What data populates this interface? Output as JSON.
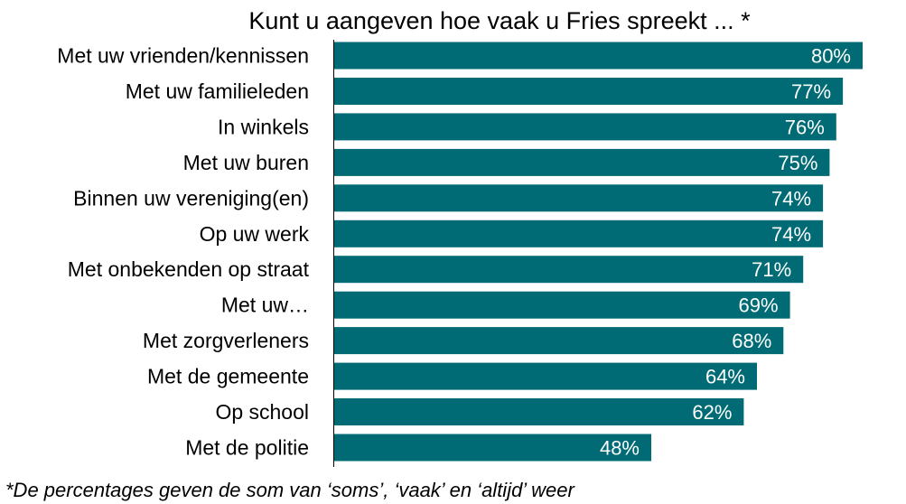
{
  "chart_data": {
    "type": "bar",
    "orientation": "horizontal",
    "title": "Kunt u aangeven hoe vaak u Fries spreekt ... *",
    "categories": [
      "Met uw vrienden/kennissen",
      "Met uw familieleden",
      "In winkels",
      "Met uw buren",
      "Binnen uw vereniging(en)",
      "Op uw werk",
      "Met onbekenden op straat",
      "Met uw…",
      "Met zorgverleners",
      "Met de gemeente",
      "Op school",
      "Met de politie"
    ],
    "values": [
      80,
      77,
      76,
      75,
      74,
      74,
      71,
      69,
      68,
      64,
      62,
      48
    ],
    "value_labels": [
      "80%",
      "77%",
      "76%",
      "75%",
      "74%",
      "74%",
      "71%",
      "69%",
      "68%",
      "64%",
      "62%",
      "48%"
    ],
    "unit": "%",
    "xlim": [
      0,
      80
    ],
    "grid": false,
    "legend": "none",
    "bar_color": "#006b75",
    "value_label_color": "#ffffff",
    "footnote": "*De percentages geven de som van ‘soms’, ‘vaak’ en ‘altijd’ weer"
  }
}
